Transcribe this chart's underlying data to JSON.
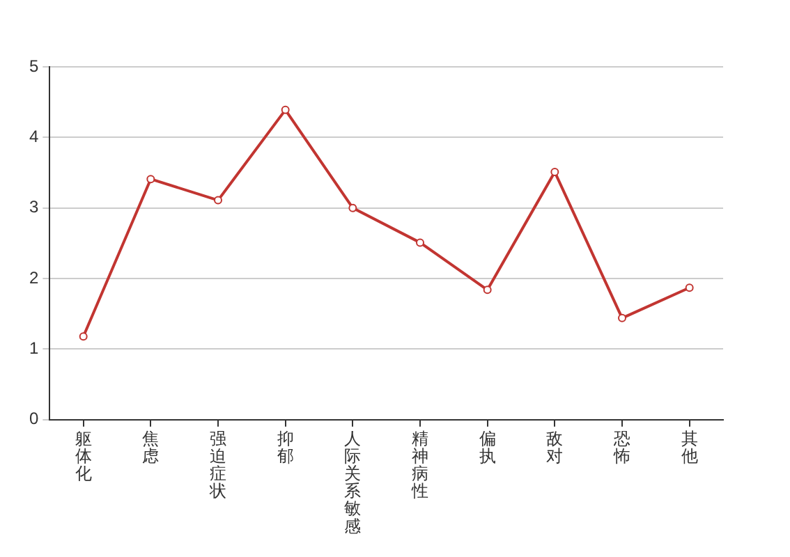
{
  "chart_data": {
    "type": "line",
    "categories": [
      "躯体化",
      "焦虑",
      "强迫症状",
      "抑郁",
      "人际关系敏感",
      "精神病性",
      "偏执",
      "敌对",
      "恐怖",
      "其他"
    ],
    "series": [
      {
        "color": "#c23531",
        "values": [
          1.18,
          3.41,
          3.11,
          4.39,
          3.0,
          2.51,
          1.84,
          3.51,
          1.44,
          1.87
        ]
      }
    ],
    "ylim": [
      0,
      5
    ],
    "yticks": [
      0,
      1,
      2,
      3,
      4,
      5
    ],
    "grid": "y",
    "marker": "circle",
    "legend": false
  }
}
